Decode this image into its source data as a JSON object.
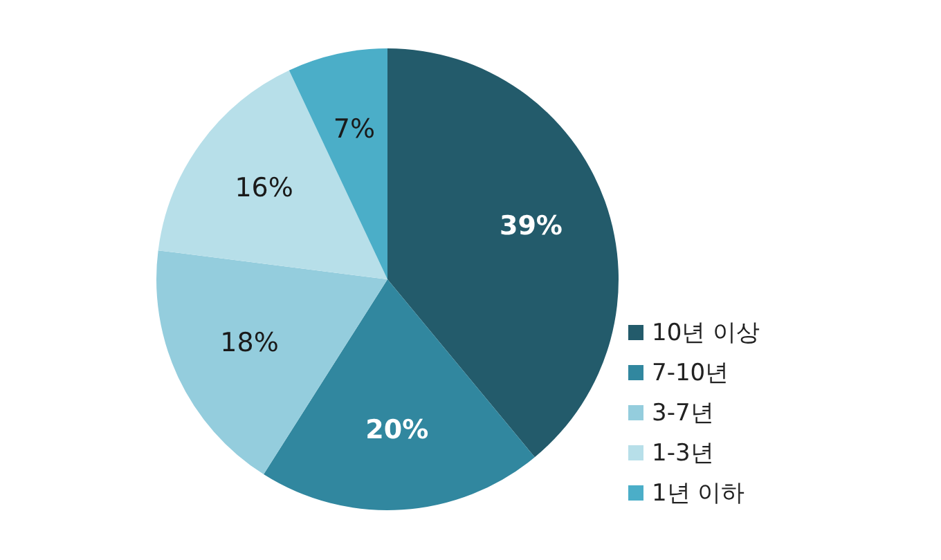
{
  "chart_data": {
    "type": "pie",
    "categories": [
      "10년 이상",
      "7-10년",
      "3-7년",
      "1-3년",
      "1년 이하"
    ],
    "values": [
      39,
      20,
      18,
      16,
      7
    ],
    "colors": [
      "#235b6b",
      "#31879f",
      "#94cddd",
      "#b7dfe9",
      "#4baec8"
    ],
    "value_labels": [
      "39%",
      "20%",
      "18%",
      "16%",
      "7%"
    ],
    "legend": "right"
  }
}
